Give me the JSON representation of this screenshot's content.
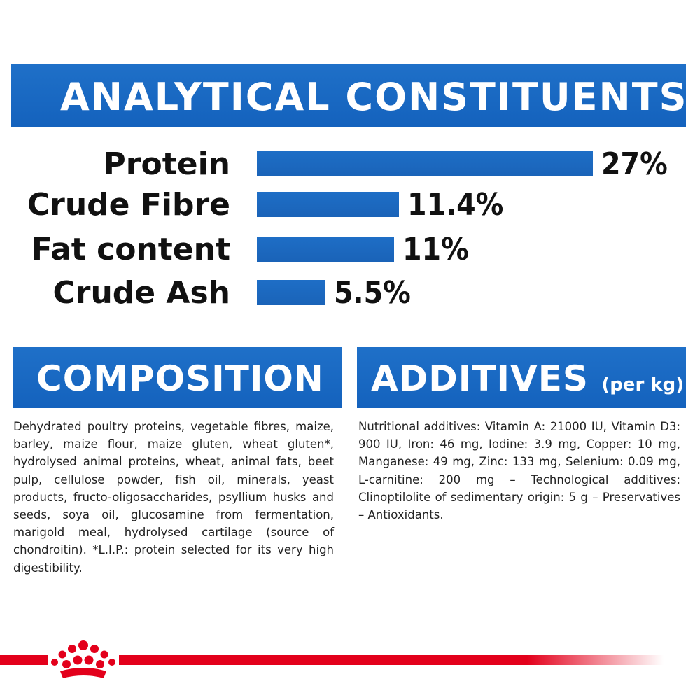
{
  "analytical": {
    "title": "ANALYTICAL CONSTITUENTS",
    "rows": [
      {
        "label": "Protein",
        "value_text": "27%",
        "value": 27
      },
      {
        "label": "Crude Fibre",
        "value_text": "11.4%",
        "value": 11.4
      },
      {
        "label": "Fat content",
        "value_text": "11%",
        "value": 11
      },
      {
        "label": "Crude Ash",
        "value_text": "5.5%",
        "value": 5.5
      }
    ]
  },
  "composition": {
    "title": "COMPOSITION",
    "text": "Dehydrated poultry proteins, vegetable fibres, maize, barley, maize flour, maize gluten, wheat gluten*, hydrolysed animal proteins, wheat, animal fats, beet pulp, cellulose powder, fish oil, minerals, yeast products, fructo-oligosaccharides, psyllium husks and seeds, soya oil, glucosamine from fermentation, marigold meal, hydrolysed cartilage (source of chondroitin). *L.I.P.: protein selected for its very high digestibility."
  },
  "additives": {
    "title": "ADDITIVES",
    "subtitle": "(per kg)",
    "text": "Nutritional additives: Vitamin A: 21000 IU, Vitamin D3: 900 IU, Iron: 46 mg, Iodine: 3.9 mg, Copper: 10 mg, Manganese: 49 mg, Zinc: 133 mg, Selenium: 0.09 mg, L-carnitine: 200 mg – Technological additives: Clinoptilolite of sedimentary origin: 5 g – Preservatives – Antioxidants."
  },
  "colors": {
    "banner_blue": "#1565c0",
    "bar_blue": "#1a63b8",
    "brand_red": "#e3001b"
  },
  "icons": {
    "logo": "royal-canin-crown-icon"
  }
}
